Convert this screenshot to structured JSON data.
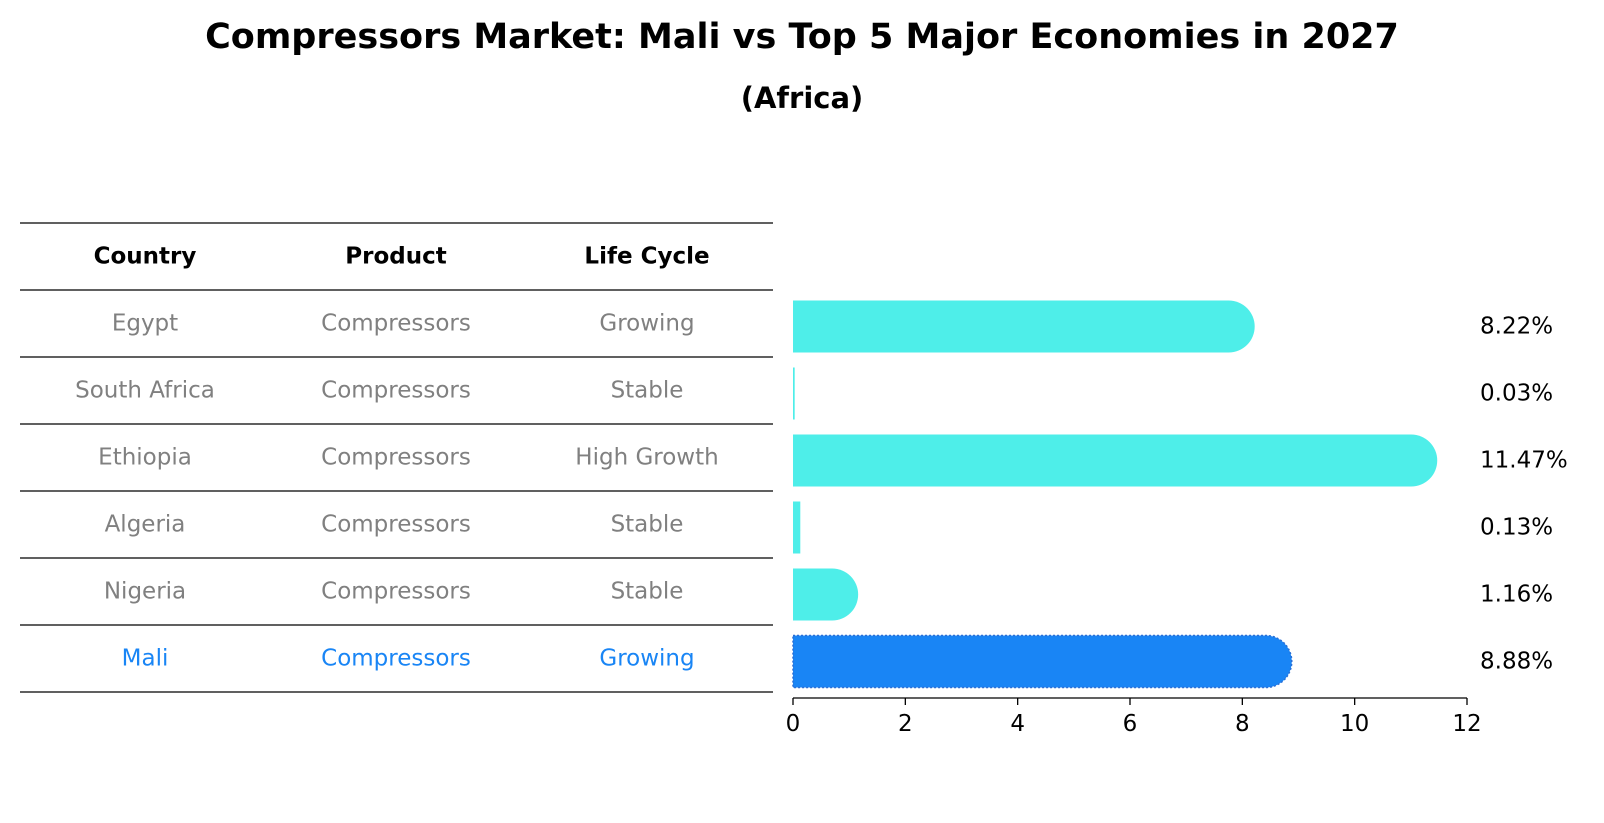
{
  "title": "Compressors Market: Mali vs Top 5 Major Economies in 2027",
  "subtitle": "(Africa)",
  "colors": {
    "bar": "#4EEEE9",
    "highlight": "#1985F5",
    "muted_text": "#808080",
    "rule": "#000000"
  },
  "table": {
    "headers": [
      "Country",
      "Product",
      "Life Cycle"
    ],
    "rows": [
      {
        "country": "Egypt",
        "product": "Compressors",
        "life_cycle": "Growing",
        "highlight": false
      },
      {
        "country": "South Africa",
        "product": "Compressors",
        "life_cycle": "Stable",
        "highlight": false
      },
      {
        "country": "Ethiopia",
        "product": "Compressors",
        "life_cycle": "High Growth",
        "highlight": false
      },
      {
        "country": "Algeria",
        "product": "Compressors",
        "life_cycle": "Stable",
        "highlight": false
      },
      {
        "country": "Nigeria",
        "product": "Compressors",
        "life_cycle": "Stable",
        "highlight": false
      },
      {
        "country": "Mali",
        "product": "Compressors",
        "life_cycle": "Growing",
        "highlight": true
      }
    ]
  },
  "chart_data": {
    "type": "bar",
    "orientation": "horizontal",
    "categories": [
      "Egypt",
      "South Africa",
      "Ethiopia",
      "Algeria",
      "Nigeria",
      "Mali"
    ],
    "values": [
      8.22,
      0.03,
      11.47,
      0.13,
      1.16,
      8.88
    ],
    "value_labels": [
      "8.22%",
      "0.03%",
      "11.47%",
      "0.13%",
      "1.16%",
      "8.88%"
    ],
    "highlight_index": 5,
    "xlim": [
      0,
      12
    ],
    "xticks": [
      0,
      2,
      4,
      6,
      8,
      10,
      12
    ],
    "grid": false
  }
}
